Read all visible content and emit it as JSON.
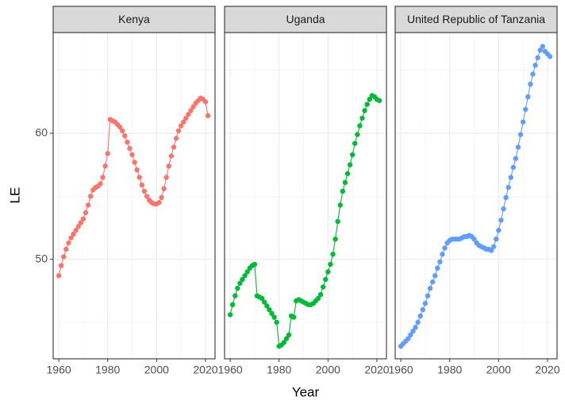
{
  "chart_data": {
    "type": "line",
    "facet": true,
    "x_label": "Year",
    "y_label": "LE",
    "x": [
      1960,
      1961,
      1962,
      1963,
      1964,
      1965,
      1966,
      1967,
      1968,
      1969,
      1970,
      1971,
      1972,
      1973,
      1974,
      1975,
      1976,
      1977,
      1978,
      1979,
      1980,
      1981,
      1982,
      1983,
      1984,
      1985,
      1986,
      1987,
      1988,
      1989,
      1990,
      1991,
      1992,
      1993,
      1994,
      1995,
      1996,
      1997,
      1998,
      1999,
      2000,
      2001,
      2002,
      2003,
      2004,
      2005,
      2006,
      2007,
      2008,
      2009,
      2010,
      2011,
      2012,
      2013,
      2014,
      2015,
      2016,
      2017,
      2018,
      2019,
      2020,
      2021
    ],
    "series": [
      {
        "name": "Kenya",
        "color": "#f8766d",
        "values": [
          48.7,
          49.5,
          50.2,
          50.8,
          51.3,
          51.7,
          52.0,
          52.3,
          52.6,
          52.9,
          53.2,
          53.7,
          54.3,
          55.0,
          55.5,
          55.7,
          55.8,
          56.0,
          56.5,
          57.4,
          58.4,
          61.1,
          61.0,
          60.9,
          60.7,
          60.5,
          60.2,
          59.8,
          59.3,
          58.8,
          58.3,
          57.7,
          57.1,
          56.5,
          55.9,
          55.4,
          55.0,
          54.7,
          54.5,
          54.4,
          54.4,
          54.5,
          54.9,
          55.6,
          56.5,
          57.4,
          58.2,
          58.9,
          59.6,
          60.2,
          60.6,
          60.9,
          61.2,
          61.5,
          61.8,
          62.1,
          62.4,
          62.6,
          62.8,
          62.7,
          62.5,
          61.4
        ]
      },
      {
        "name": "Uganda",
        "color": "#00ba38",
        "values": [
          45.6,
          46.4,
          47.1,
          47.7,
          48.1,
          48.4,
          48.7,
          49.0,
          49.3,
          49.5,
          49.6,
          47.1,
          47.0,
          46.9,
          46.6,
          46.3,
          46.0,
          45.7,
          45.4,
          45.0,
          43.1,
          43.2,
          43.4,
          43.7,
          44.0,
          45.5,
          45.4,
          46.7,
          46.8,
          46.7,
          46.6,
          46.5,
          46.4,
          46.4,
          46.5,
          46.7,
          46.9,
          47.2,
          47.8,
          48.4,
          49.0,
          49.6,
          50.4,
          51.6,
          53.0,
          54.3,
          55.4,
          56.1,
          56.8,
          57.5,
          58.3,
          59.2,
          59.9,
          60.6,
          61.2,
          61.8,
          62.3,
          62.7,
          63.0,
          62.9,
          62.7,
          62.6
        ]
      },
      {
        "name": "United Republic of Tanzania",
        "color": "#619cff",
        "values": [
          43.1,
          43.3,
          43.5,
          43.7,
          44.0,
          44.3,
          44.6,
          45.0,
          45.5,
          46.0,
          46.5,
          47.1,
          47.7,
          48.2,
          48.7,
          49.3,
          49.8,
          50.4,
          50.9,
          51.3,
          51.5,
          51.6,
          51.6,
          51.6,
          51.6,
          51.7,
          51.8,
          51.8,
          51.9,
          51.8,
          51.6,
          51.3,
          51.1,
          51.0,
          50.9,
          50.8,
          50.8,
          50.7,
          51.0,
          51.6,
          52.3,
          53.1,
          54.0,
          54.9,
          55.7,
          56.5,
          57.3,
          58.0,
          58.9,
          59.9,
          60.9,
          61.9,
          62.9,
          63.9,
          64.7,
          65.4,
          66.0,
          66.6,
          66.9,
          66.5,
          66.3,
          66.1
        ]
      }
    ],
    "xlim": [
      1957.7,
      2023.9
    ],
    "ylim": [
      42.1,
      68
    ],
    "xticks": [
      1960,
      1980,
      2000,
      2020
    ],
    "yticks": [
      50,
      60
    ],
    "x_minor_ticks": [
      1970,
      1990,
      2010
    ],
    "y_minor_ticks": [
      45,
      55,
      65
    ],
    "grid": true
  }
}
